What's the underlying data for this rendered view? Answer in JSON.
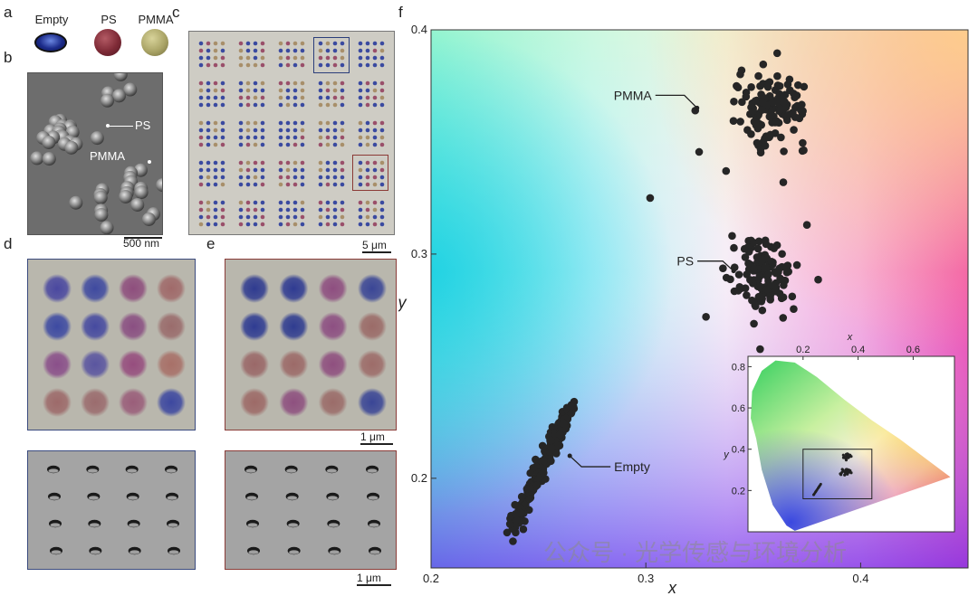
{
  "panels": {
    "a": {
      "label": "a",
      "legend": [
        {
          "name": "Empty",
          "color": "#1f2f8a"
        },
        {
          "name": "PS",
          "color": "#8a2f3a"
        },
        {
          "name": "PMMA",
          "color": "#b3ad6a"
        }
      ]
    },
    "b": {
      "label": "b",
      "annotation_ps": "PS",
      "annotation_pmma": "PMMA",
      "scalebar": "500 nm"
    },
    "c": {
      "label": "c",
      "scalebar": "5 μm"
    },
    "d": {
      "label": "d",
      "dot_colors": [
        [
          "#4a48a0",
          "#3f4aa0",
          "#8e4e7d",
          "#a06a6a"
        ],
        [
          "#3d4aa2",
          "#464aa0",
          "#8a4f82",
          "#9a6c6c"
        ],
        [
          "#8a4f8a",
          "#5a55a0",
          "#964d7e",
          "#a87068"
        ],
        [
          "#9d6a6a",
          "#9b6c6e",
          "#9a5e7a",
          "#3d48a0"
        ]
      ]
    },
    "e": {
      "label": "e",
      "scalebar": "1 μm",
      "dot_colors": [
        [
          "#2f3b90",
          "#2f3b92",
          "#8e4e80",
          "#3a4696"
        ],
        [
          "#2f3c92",
          "#2f3c90",
          "#8d4f82",
          "#9b6b68"
        ],
        [
          "#9a6868",
          "#9c6a68",
          "#8f4f7f",
          "#9d6c69"
        ],
        [
          "#9d6a67",
          "#8e507f",
          "#9b6c69",
          "#3a4696"
        ]
      ]
    },
    "de_bottom": {
      "scalebar": "1 μm"
    },
    "f": {
      "label": "f"
    }
  },
  "chart_data": {
    "type": "scatter",
    "xlabel": "x",
    "ylabel": "y",
    "xlim": [
      0.2,
      0.45
    ],
    "ylim": [
      0.16,
      0.4
    ],
    "xticks": [
      0.2,
      0.3,
      0.4
    ],
    "yticks": [
      0.2,
      0.3,
      0.4
    ],
    "tick_labels": {
      "x": [
        "0.2",
        "0.3",
        "0.4"
      ],
      "y": [
        "0.2",
        "0.3",
        "0.4"
      ]
    },
    "clusters": [
      {
        "name": "PMMA",
        "center": [
          0.359,
          0.365
        ],
        "spread": [
          0.008,
          0.008
        ],
        "outliers": [
          [
            0.323,
            0.364
          ],
          [
            0.302,
            0.325
          ],
          [
            0.364,
            0.332
          ]
        ]
      },
      {
        "name": "PS",
        "center": [
          0.355,
          0.29
        ],
        "spread": [
          0.008,
          0.008
        ],
        "outliers": [
          [
            0.328,
            0.272
          ],
          [
            0.375,
            0.313
          ]
        ]
      },
      {
        "name": "Empty",
        "from": [
          0.238,
          0.178
        ],
        "to": [
          0.265,
          0.232
        ]
      }
    ],
    "annotations": [
      {
        "text": "PMMA",
        "point": [
          0.323,
          0.37
        ]
      },
      {
        "text": "PS",
        "point": [
          0.34,
          0.288
        ]
      },
      {
        "text": "Empty",
        "point": [
          0.265,
          0.21
        ]
      }
    ],
    "inset": {
      "xlabel": "x",
      "ylabel": "y",
      "xticks": [
        0.2,
        0.4,
        0.6
      ],
      "yticks": [
        0.2,
        0.4,
        0.6,
        0.8
      ],
      "xlim": [
        0.0,
        0.75
      ],
      "ylim": [
        0.0,
        0.85
      ],
      "box": {
        "x": [
          0.2,
          0.45
        ],
        "y": [
          0.16,
          0.4
        ]
      }
    }
  },
  "watermark": "公众号 · 光学传感与环境分析"
}
